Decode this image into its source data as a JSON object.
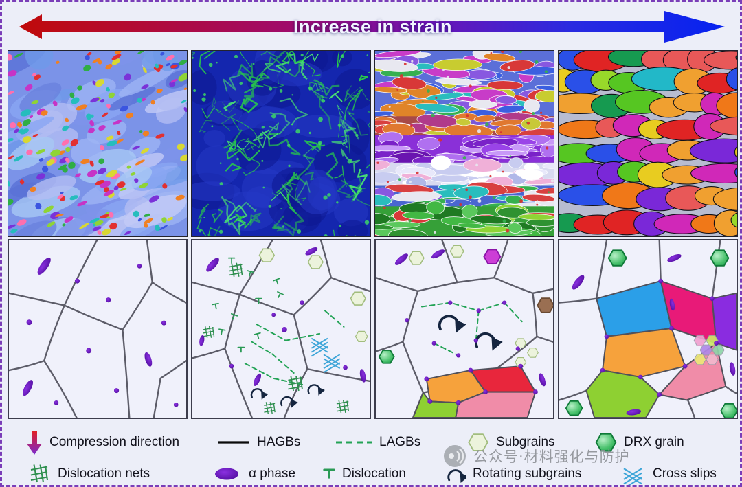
{
  "header": {
    "arrow_label": "Increase in strain"
  },
  "legend": {
    "row1": [
      {
        "icon": "compression-direction-icon",
        "label": "Compression direction"
      },
      {
        "icon": "hagbs-line-icon",
        "label": "HAGBs"
      },
      {
        "icon": "lagbs-dashed-line-icon",
        "label": "LAGBs"
      },
      {
        "icon": "subgrains-hexagon-icon",
        "label": "Subgrains"
      },
      {
        "icon": "drx-grain-hexagon-icon",
        "label": "DRX grain"
      }
    ],
    "row2": [
      {
        "icon": "dislocation-nets-icon",
        "label": "Dislocation nets"
      },
      {
        "icon": "alpha-phase-ellipse-icon",
        "label": "α phase"
      },
      {
        "icon": "dislocation-symbol-icon",
        "label": "Dislocation"
      },
      {
        "icon": "rotating-subgrains-arrow-icon",
        "label": "Rotating subgrains"
      },
      {
        "icon": "cross-slips-icon",
        "label": "Cross slips"
      }
    ]
  },
  "watermark": {
    "icon": "wechat-official-account-icon",
    "text": "公众号·材料强化与防护"
  },
  "colors": {
    "arrow_start": "#c00a0a",
    "arrow_end": "#0622f0",
    "alpha_phase": "#5a0fb0",
    "lagb_green": "#23a356",
    "drx_green": "#2da05a",
    "cross_slip_blue": "#3fa6d8",
    "hagb_black": "#0a0a0a",
    "border_purple": "#7a3db8",
    "background": "#eceef8"
  }
}
